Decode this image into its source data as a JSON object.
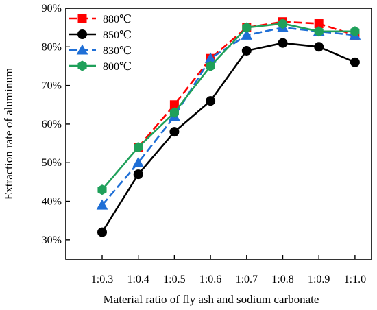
{
  "chart_data": {
    "type": "line",
    "title": "",
    "xlabel": "Material ratio of fly ash and sodium carbonate",
    "ylabel": "Extraction rate of aluminum",
    "categories": [
      "1:0.3",
      "1:0.4",
      "1:0.5",
      "1:0.6",
      "1:0.7",
      "1:0.8",
      "1:0.9",
      "1:1.0"
    ],
    "ylim": [
      25,
      90
    ],
    "yticks": [
      30,
      40,
      50,
      60,
      70,
      80,
      90
    ],
    "ytick_labels": [
      "30%",
      "40%",
      "50%",
      "60%",
      "70%",
      "80%",
      "90%"
    ],
    "grid": false,
    "legend_position": "top-left",
    "series": [
      {
        "name": "880℃",
        "color": "#ff0000",
        "marker": "square",
        "dash": true,
        "values": [
          null,
          54,
          65,
          77,
          85,
          86.5,
          86,
          83
        ]
      },
      {
        "name": "850℃",
        "color": "#000000",
        "marker": "circle",
        "dash": false,
        "values": [
          32,
          47,
          58,
          66,
          79,
          81,
          80,
          76
        ]
      },
      {
        "name": "830℃",
        "color": "#1f6fd6",
        "marker": "triangle",
        "dash": true,
        "values": [
          39,
          50,
          62,
          77,
          83,
          85,
          84,
          83
        ]
      },
      {
        "name": "800℃",
        "color": "#1fa05a",
        "marker": "hexagon",
        "dash": false,
        "values": [
          43,
          54,
          63,
          75,
          85,
          86,
          84,
          84
        ]
      }
    ]
  }
}
